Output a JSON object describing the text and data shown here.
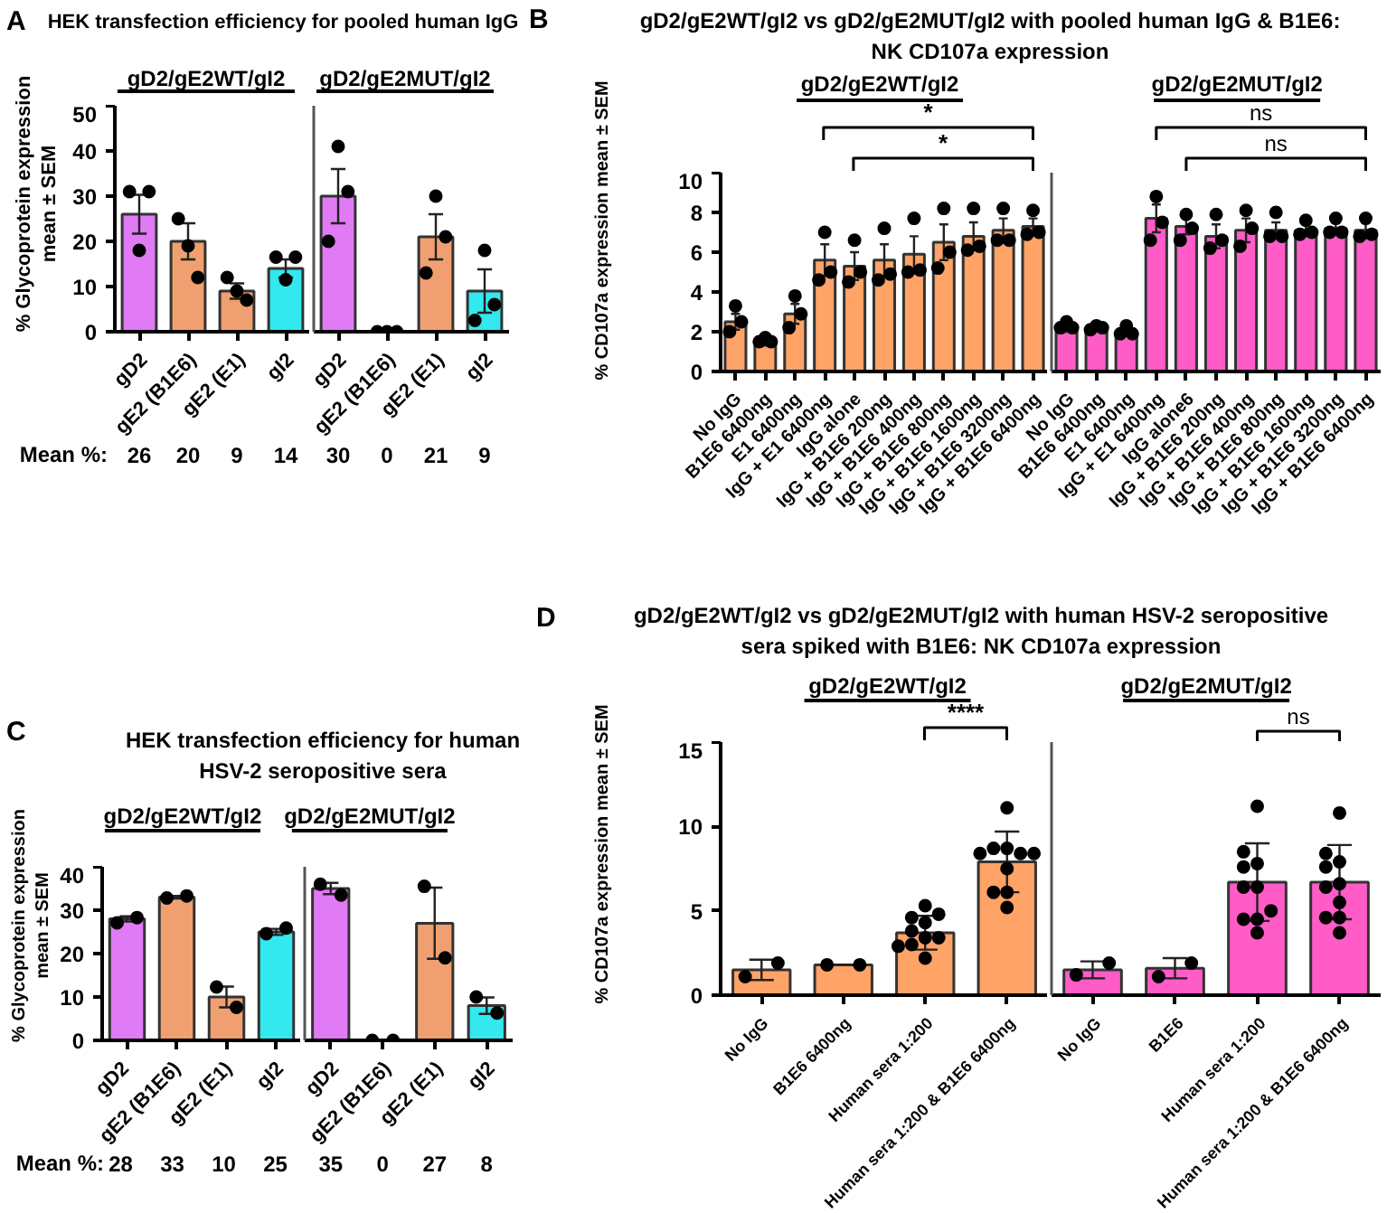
{
  "chart_data": [
    {
      "type": "bar",
      "title": "HEK transfection efficiency for pooled human IgG",
      "ylabel": "% Glycoprotein expression mean ± SEM",
      "categories": [
        "gD2",
        "gE2 (B1E6)",
        "gE2 (E1)",
        "gI2"
      ],
      "ylim": [
        0,
        50
      ],
      "yticks": [
        0,
        10,
        20,
        30,
        40,
        50
      ],
      "grid": false,
      "marker": "circle",
      "annotations": [
        "A",
        "gD2/gE2WT/gI2",
        "Mean %:"
      ],
      "series": [
        {
          "colors": [
            "#e07af5",
            "#f0a070",
            "#f0a070",
            "#33e8ee"
          ],
          "values": [
            26,
            20,
            9,
            14
          ],
          "value_labels": [
            "26",
            "20",
            "9",
            "14"
          ],
          "errors": [
            4.3,
            4,
            1.7,
            2
          ]
        },
        {
          "type": "scatter",
          "color": "#000000",
          "x": [
            "gD2",
            "gD2",
            "gD2",
            "gE2 (B1E6)",
            "gE2 (B1E6)",
            "gE2 (B1E6)",
            "gE2 (E1)",
            "gE2 (E1)",
            "gE2 (E1)",
            "gI2",
            "gI2",
            "gI2"
          ],
          "values": [
            31,
            18,
            31,
            25,
            19,
            12,
            12,
            9,
            7,
            16.5,
            11.5,
            16.5
          ]
        }
      ]
    },
    {
      "type": "bar",
      "categories": [
        "gD2",
        "gE2 (B1E6)",
        "gE2 (E1)",
        "gI2"
      ],
      "ylim": [
        0,
        50
      ],
      "yticks": [
        0,
        10,
        20,
        30,
        40,
        50
      ],
      "tick_labels": "x",
      "grid": false,
      "marker": "circle",
      "annotations": [
        "gD2/gE2MUT/gI2"
      ],
      "series": [
        {
          "colors": [
            "#e07af5",
            "#f0a070",
            "#f0a070",
            "#33e8ee"
          ],
          "values": [
            30,
            0,
            21,
            9
          ],
          "value_labels": [
            "30",
            "0",
            "21",
            "9"
          ],
          "errors": [
            6,
            0,
            5,
            4.8
          ]
        },
        {
          "type": "scatter",
          "color": "#000000",
          "x": [
            "gD2",
            "gD2",
            "gD2",
            "gE2 (B1E6)",
            "gE2 (B1E6)",
            "gE2 (B1E6)",
            "gE2 (E1)",
            "gE2 (E1)",
            "gE2 (E1)",
            "gI2",
            "gI2",
            "gI2"
          ],
          "values": [
            20,
            41,
            31,
            0,
            0,
            0,
            13,
            30,
            21,
            2.5,
            18,
            6
          ]
        }
      ]
    },
    {
      "type": "bar",
      "title": "gD2/gE2WT/gI2 vs gD2/gE2MUT/gI2 with pooled human IgG & B1E6: NK CD107a expression",
      "ylabel": "% CD107a expression mean ± SEM",
      "categories": [
        "No IgG",
        "B1E6 6400ng",
        "E1 6400ng",
        "IgG + E1 6400ng",
        "IgG alone",
        "IgG + B1E6 200ng",
        "IgG + B1E6 400ng",
        "IgG + B1E6 800ng",
        "IgG + B1E6 1600ng",
        "IgG + B1E6 3200ng",
        "IgG + B1E6 6400ng"
      ],
      "ylim": [
        0,
        10
      ],
      "yticks": [
        0,
        2,
        4,
        6,
        8,
        10
      ],
      "grid": false,
      "marker": "circle",
      "annotations": [
        "B",
        "gD2/gE2WT/gI2",
        "*",
        "*"
      ],
      "series": [
        {
          "colors": [
            "#ffa366",
            "#ffa366",
            "#ffa366",
            "#ffa366",
            "#ffa366",
            "#ffa366",
            "#ffa366",
            "#ffa366",
            "#ffa366",
            "#ffa366",
            "#ffa366"
          ],
          "values": [
            2.5,
            1.5,
            2.9,
            5.6,
            5.3,
            5.6,
            5.9,
            6.5,
            6.8,
            7.1,
            7.3
          ],
          "errors": [
            0.4,
            0.2,
            0.5,
            0.8,
            0.7,
            0.8,
            0.9,
            0.9,
            0.7,
            0.6,
            0.4
          ]
        },
        {
          "type": "scatter",
          "color": "#000000",
          "x": [
            "No IgG",
            "No IgG",
            "No IgG",
            "B1E6 6400ng",
            "B1E6 6400ng",
            "B1E6 6400ng",
            "E1 6400ng",
            "E1 6400ng",
            "E1 6400ng",
            "IgG + E1 6400ng",
            "IgG + E1 6400ng",
            "IgG + E1 6400ng",
            "IgG alone",
            "IgG alone",
            "IgG alone",
            "IgG + B1E6 200ng",
            "IgG + B1E6 200ng",
            "IgG + B1E6 200ng",
            "IgG + B1E6 400ng",
            "IgG + B1E6 400ng",
            "IgG + B1E6 400ng",
            "IgG + B1E6 800ng",
            "IgG + B1E6 800ng",
            "IgG + B1E6 800ng",
            "IgG + B1E6 1600ng",
            "IgG + B1E6 1600ng",
            "IgG + B1E6 1600ng",
            "IgG + B1E6 3200ng",
            "IgG + B1E6 3200ng",
            "IgG + B1E6 3200ng",
            "IgG + B1E6 6400ng",
            "IgG + B1E6 6400ng",
            "IgG + B1E6 6400ng"
          ],
          "values": [
            2.0,
            3.3,
            2.5,
            1.5,
            1.7,
            1.5,
            2.2,
            3.8,
            2.9,
            4.6,
            7.0,
            5.0,
            4.5,
            6.6,
            5.0,
            4.6,
            7.2,
            4.9,
            5.0,
            7.7,
            5.1,
            5.2,
            8.2,
            6.0,
            6.1,
            8.2,
            6.3,
            6.6,
            8.2,
            6.6,
            6.9,
            8.1,
            7.0
          ]
        }
      ]
    },
    {
      "type": "bar",
      "categories": [
        "No IgG",
        "B1E6 6400ng",
        "E1 6400ng",
        "IgG + E1 6400ng",
        "IgG alone6",
        "IgG + B1E6 200ng",
        "IgG + B1E6 400ng",
        "IgG + B1E6 800ng",
        "IgG + B1E6 1600ng",
        "IgG + B1E6 3200ng",
        "IgG + B1E6 6400ng"
      ],
      "ylim": [
        0,
        10
      ],
      "yticks": [
        0,
        2,
        4,
        6,
        8,
        10
      ],
      "tick_labels": "x",
      "grid": false,
      "marker": "circle",
      "annotations": [
        "gD2/gE2MUT/gI2",
        "ns",
        "ns"
      ],
      "series": [
        {
          "colors": [
            "#ff5cc8",
            "#ff5cc8",
            "#ff5cc8",
            "#ff5cc8",
            "#ff5cc8",
            "#ff5cc8",
            "#ff5cc8",
            "#ff5cc8",
            "#ff5cc8",
            "#ff5cc8",
            "#ff5cc8"
          ],
          "values": [
            2.2,
            2.2,
            2.0,
            7.7,
            7.3,
            6.8,
            7.1,
            7.1,
            7.1,
            7.2,
            7.1
          ],
          "errors": [
            0.2,
            0.1,
            0.2,
            0.7,
            0.4,
            0.6,
            0.6,
            0.4,
            0.3,
            0.3,
            0.4
          ]
        },
        {
          "type": "scatter",
          "color": "#000000",
          "x": [
            "No IgG",
            "No IgG",
            "No IgG",
            "B1E6 6400ng",
            "B1E6 6400ng",
            "B1E6 6400ng",
            "E1 6400ng",
            "E1 6400ng",
            "E1 6400ng",
            "IgG + E1 6400ng",
            "IgG + E1 6400ng",
            "IgG + E1 6400ng",
            "IgG alone6",
            "IgG alone6",
            "IgG alone6",
            "IgG + B1E6 200ng",
            "IgG + B1E6 200ng",
            "IgG + B1E6 200ng",
            "IgG + B1E6 400ng",
            "IgG + B1E6 400ng",
            "IgG + B1E6 400ng",
            "IgG + B1E6 800ng",
            "IgG + B1E6 800ng",
            "IgG + B1E6 800ng",
            "IgG + B1E6 1600ng",
            "IgG + B1E6 1600ng",
            "IgG + B1E6 1600ng",
            "IgG + B1E6 3200ng",
            "IgG + B1E6 3200ng",
            "IgG + B1E6 3200ng",
            "IgG + B1E6 6400ng",
            "IgG + B1E6 6400ng",
            "IgG + B1E6 6400ng"
          ],
          "values": [
            2.2,
            2.5,
            2.2,
            2.1,
            2.3,
            2.2,
            1.9,
            2.3,
            1.9,
            6.6,
            8.8,
            7.5,
            6.6,
            7.9,
            7.2,
            6.2,
            7.9,
            6.6,
            6.3,
            8.1,
            7.2,
            6.8,
            8.0,
            6.8,
            6.9,
            7.6,
            7.0,
            7.0,
            7.7,
            7.0,
            6.8,
            7.7,
            6.9
          ]
        }
      ]
    },
    {
      "type": "bar",
      "title": "HEK transfection efficiency for human HSV-2 seropositive sera",
      "ylabel": "% Glycoprotein expression mean ± SEM",
      "categories": [
        "gD2",
        "gE2 (B1E6)",
        "gE2 (E1)",
        "gI2"
      ],
      "ylim": [
        0,
        40
      ],
      "yticks": [
        0,
        10,
        20,
        30,
        40
      ],
      "grid": false,
      "marker": "circle",
      "annotations": [
        "C",
        "gD2/gE2WT/gI2",
        "Mean %:"
      ],
      "series": [
        {
          "colors": [
            "#e07af5",
            "#f0a070",
            "#f0a070",
            "#33e8ee"
          ],
          "values": [
            28,
            33,
            10,
            25
          ],
          "value_labels": [
            "28",
            "33",
            "10",
            "25"
          ],
          "errors": [
            0.6,
            0.3,
            2.4,
            0.7
          ]
        },
        {
          "type": "scatter",
          "color": "#000000",
          "x": [
            "gD2",
            "gD2",
            "gE2 (B1E6)",
            "gE2 (B1E6)",
            "gE2 (E1)",
            "gE2 (E1)",
            "gI2",
            "gI2"
          ],
          "values": [
            27.1,
            28.3,
            32.8,
            33.3,
            12.3,
            7.6,
            24.6,
            25.9
          ]
        }
      ]
    },
    {
      "type": "bar",
      "categories": [
        "gD2",
        "gE2 (B1E6)",
        "gE2 (E1)",
        "gI2"
      ],
      "ylim": [
        0,
        40
      ],
      "yticks": [
        0,
        10,
        20,
        30,
        40
      ],
      "tick_labels": "x",
      "grid": false,
      "marker": "circle",
      "annotations": [
        "gD2/gE2MUT/gI2"
      ],
      "series": [
        {
          "colors": [
            "#e07af5",
            "#f0a070",
            "#f0a070",
            "#33e8ee"
          ],
          "values": [
            35,
            0,
            27,
            8
          ],
          "value_labels": [
            "35",
            "0",
            "27",
            "8"
          ],
          "errors": [
            1.3,
            0,
            8.2,
            1.9
          ]
        },
        {
          "type": "scatter",
          "color": "#000000",
          "x": [
            "gD2",
            "gD2",
            "gE2 (B1E6)",
            "gE2 (B1E6)",
            "gE2 (E1)",
            "gE2 (E1)",
            "gI2",
            "gI2"
          ],
          "values": [
            36,
            33.5,
            0,
            0,
            35.5,
            19,
            10,
            6.3
          ]
        }
      ]
    },
    {
      "type": "bar",
      "title": "gD2/gE2WT/gI2 vs gD2/gE2MUT/gI2 with human HSV-2 seropositive sera spiked with B1E6: NK CD107a expression",
      "ylabel": "% CD107a expression mean ± SEM",
      "categories": [
        "No IgG",
        "B1E6 6400ng",
        "Human sera 1:200",
        "Human sera 1:200 & B1E6 6400ng"
      ],
      "ylim": [
        0,
        15
      ],
      "yticks": [
        0,
        5,
        10,
        15
      ],
      "grid": false,
      "marker": "circle",
      "annotations": [
        "D",
        "gD2/gE2WT/gI2",
        "****"
      ],
      "series": [
        {
          "colors": [
            "#ffa366",
            "#ffa366",
            "#ffa366",
            "#ffa366"
          ],
          "values": [
            1.5,
            1.8,
            3.7,
            7.9
          ],
          "errors": [
            0.6,
            0,
            1.0,
            1.8
          ]
        },
        {
          "type": "scatter",
          "color": "#000000",
          "x": [
            "No IgG",
            "No IgG",
            "B1E6 6400ng",
            "B1E6 6400ng",
            "Human sera 1:200",
            "Human sera 1:200",
            "Human sera 1:200",
            "Human sera 1:200",
            "Human sera 1:200",
            "Human sera 1:200",
            "Human sera 1:200",
            "Human sera 1:200",
            "Human sera 1:200",
            "Human sera 1:200",
            "Human sera 1:200 & B1E6 6400ng",
            "Human sera 1:200 & B1E6 6400ng",
            "Human sera 1:200 & B1E6 6400ng",
            "Human sera 1:200 & B1E6 6400ng",
            "Human sera 1:200 & B1E6 6400ng",
            "Human sera 1:200 & B1E6 6400ng",
            "Human sera 1:200 & B1E6 6400ng",
            "Human sera 1:200 & B1E6 6400ng",
            "Human sera 1:200 & B1E6 6400ng",
            "Human sera 1:200 & B1E6 6400ng"
          ],
          "values": [
            1.1,
            1.9,
            1.8,
            1.8,
            3.4,
            5.3,
            3.0,
            4.6,
            4.8,
            2.2,
            3.8,
            4.3,
            3.4,
            2.9,
            8.7,
            11.1,
            8.7,
            8.4,
            8.4,
            8.4,
            6.1,
            7.5,
            6.1,
            5.2
          ]
        }
      ]
    },
    {
      "type": "bar",
      "categories": [
        "No IgG",
        "B1E6",
        "Human sera 1:200",
        "Human sera 1:200 & B1E6 6400ng"
      ],
      "ylim": [
        0,
        15
      ],
      "yticks": [
        0,
        5,
        10,
        15
      ],
      "tick_labels": "x",
      "grid": false,
      "marker": "circle",
      "annotations": [
        "gD2/gE2MUT/gI2",
        "ns"
      ],
      "series": [
        {
          "colors": [
            "#ff5cc8",
            "#ff5cc8",
            "#ff5cc8",
            "#ff5cc8"
          ],
          "values": [
            1.5,
            1.6,
            6.7,
            6.7
          ],
          "errors": [
            0.5,
            0.6,
            2.3,
            2.2
          ]
        },
        {
          "type": "scatter",
          "color": "#000000",
          "x": [
            "No IgG",
            "No IgG",
            "B1E6",
            "B1E6",
            "Human sera 1:200",
            "Human sera 1:200",
            "Human sera 1:200",
            "Human sera 1:200",
            "Human sera 1:200",
            "Human sera 1:200",
            "Human sera 1:200",
            "Human sera 1:200",
            "Human sera 1:200",
            "Human sera 1:200",
            "Human sera 1:200 & B1E6 6400ng",
            "Human sera 1:200 & B1E6 6400ng",
            "Human sera 1:200 & B1E6 6400ng",
            "Human sera 1:200 & B1E6 6400ng",
            "Human sera 1:200 & B1E6 6400ng",
            "Human sera 1:200 & B1E6 6400ng",
            "Human sera 1:200 & B1E6 6400ng",
            "Human sera 1:200 & B1E6 6400ng",
            "Human sera 1:200 & B1E6 6400ng",
            "Human sera 1:200 & B1E6 6400ng"
          ],
          "values": [
            1.2,
            1.9,
            1.1,
            1.9,
            6.4,
            11.2,
            7.8,
            4.5,
            8.5,
            6.4,
            3.7,
            7.6,
            4.5,
            5.0,
            6.6,
            10.8,
            7.9,
            4.6,
            8.4,
            6.4,
            3.7,
            7.6,
            4.6,
            5.5
          ]
        }
      ]
    }
  ]
}
